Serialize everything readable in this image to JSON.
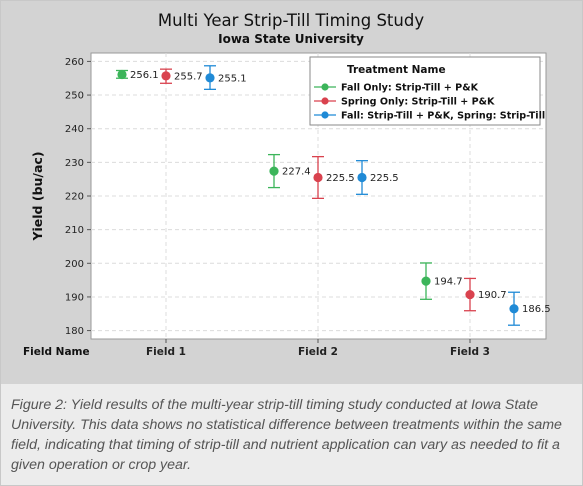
{
  "chart_data": {
    "type": "scatter",
    "title": "Multi Year Strip-Till Timing Study",
    "subtitle": "Iowa State University",
    "xlabel": "Field Name",
    "ylabel": "Yield (bu/ac)",
    "categories": [
      "Field 1",
      "Field 2",
      "Field 3"
    ],
    "ylim": [
      177.5,
      262.5
    ],
    "yticks": [
      180,
      190,
      200,
      210,
      220,
      230,
      240,
      250,
      260
    ],
    "grid": true,
    "legend": {
      "title": "Treatment Name",
      "placement": "top-right"
    },
    "series": [
      {
        "name": "Fall Only: Strip-Till + P&K",
        "color": "#3cb55a",
        "values": [
          256.1,
          227.4,
          194.7
        ],
        "labels": [
          "256.1",
          "227.4",
          "194.7"
        ],
        "error_low": [
          255.0,
          222.5,
          189.3
        ],
        "error_high": [
          257.3,
          232.3,
          200.1
        ]
      },
      {
        "name": "Spring Only: Strip-Till + P&K",
        "color": "#d9424e",
        "values": [
          255.7,
          225.5,
          190.7
        ],
        "labels": [
          "255.7",
          "225.5",
          "190.7"
        ],
        "error_low": [
          253.5,
          219.3,
          185.9
        ],
        "error_high": [
          257.7,
          231.7,
          195.5
        ]
      },
      {
        "name": "Fall: Strip-Till + P&K, Spring: Strip-Till",
        "color": "#1f8ad6",
        "values": [
          255.1,
          225.5,
          186.5
        ],
        "labels": [
          "255.1",
          "225.5",
          "186.5"
        ],
        "error_low": [
          251.7,
          220.5,
          181.6
        ],
        "error_high": [
          258.7,
          230.5,
          191.4
        ]
      }
    ]
  },
  "caption": "Figure 2: Yield results of the multi-year strip-till timing study conducted at Iowa State University. This data shows no statistical difference between treatments within the same field, indicating that timing of strip-till and nutrient application can vary as needed to fit a given operation or crop year."
}
